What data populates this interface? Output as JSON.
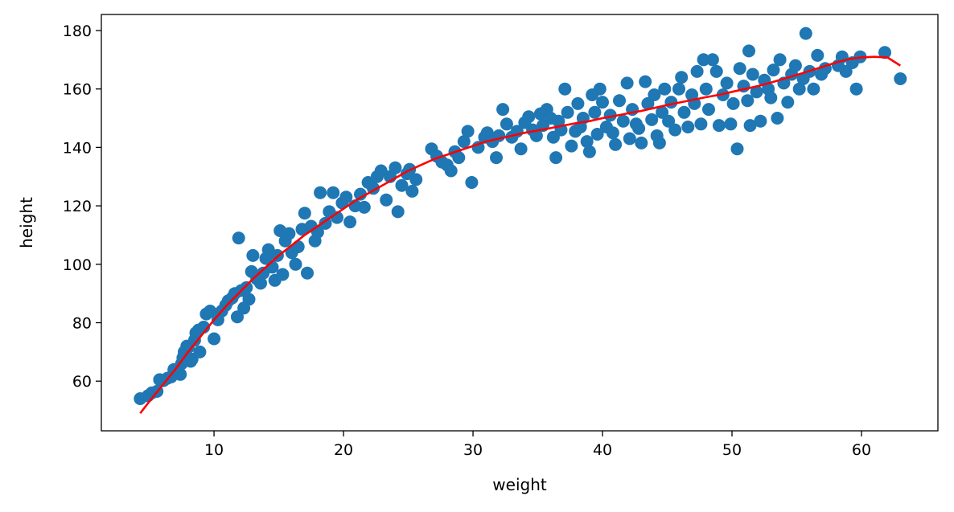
{
  "chart_data": {
    "type": "scatter",
    "title": "",
    "xlabel": "weight",
    "ylabel": "height",
    "xlim": [
      1.3,
      65.9
    ],
    "ylim": [
      43,
      185.5
    ],
    "xticks": [
      10,
      20,
      30,
      40,
      50,
      60
    ],
    "yticks": [
      60,
      80,
      100,
      120,
      140,
      160,
      180
    ],
    "grid": false,
    "legend": "none",
    "colors": {
      "points": "#1f77b4",
      "fit_line": "#ff0000",
      "axes": "#000000"
    },
    "series": [
      {
        "kind": "scatter",
        "points": [
          [
            4.3,
            54.0
          ],
          [
            4.9,
            55.0
          ],
          [
            5.2,
            56.0
          ],
          [
            5.6,
            56.5
          ],
          [
            5.8,
            60.5
          ],
          [
            6.1,
            60.2
          ],
          [
            6.4,
            61.0
          ],
          [
            6.7,
            61.5
          ],
          [
            6.9,
            64.0
          ],
          [
            7.2,
            63.0
          ],
          [
            7.4,
            62.3
          ],
          [
            7.5,
            66.0
          ],
          [
            7.6,
            68.0
          ],
          [
            7.7,
            70.0
          ],
          [
            7.9,
            72.0
          ],
          [
            8.0,
            71.5
          ],
          [
            8.2,
            66.8
          ],
          [
            8.3,
            67.5
          ],
          [
            8.5,
            74.0
          ],
          [
            8.6,
            76.5
          ],
          [
            8.8,
            77.5
          ],
          [
            8.9,
            70.0
          ],
          [
            9.2,
            78.5
          ],
          [
            9.4,
            83.0
          ],
          [
            9.7,
            84.0
          ],
          [
            10.0,
            74.5
          ],
          [
            10.3,
            81.0
          ],
          [
            10.6,
            84.0
          ],
          [
            10.9,
            86.0
          ],
          [
            11.1,
            87.5
          ],
          [
            11.4,
            88.5
          ],
          [
            11.6,
            90.0
          ],
          [
            11.8,
            82.0
          ],
          [
            11.9,
            109.0
          ],
          [
            12.1,
            91.0
          ],
          [
            12.3,
            85.0
          ],
          [
            12.5,
            92.0
          ],
          [
            12.7,
            88.0
          ],
          [
            12.9,
            97.5
          ],
          [
            13.0,
            103.0
          ],
          [
            13.3,
            95.0
          ],
          [
            13.6,
            93.5
          ],
          [
            13.8,
            97.0
          ],
          [
            14.0,
            102.0
          ],
          [
            14.2,
            105.0
          ],
          [
            14.5,
            99.0
          ],
          [
            14.7,
            94.5
          ],
          [
            14.9,
            103.0
          ],
          [
            15.1,
            111.5
          ],
          [
            15.3,
            96.5
          ],
          [
            15.5,
            108.0
          ],
          [
            15.8,
            110.5
          ],
          [
            16.0,
            104.0
          ],
          [
            16.3,
            100.0
          ],
          [
            16.5,
            106.0
          ],
          [
            16.8,
            112.0
          ],
          [
            17.0,
            117.5
          ],
          [
            17.2,
            97.0
          ],
          [
            17.5,
            113.0
          ],
          [
            17.8,
            108.0
          ],
          [
            18.0,
            111.0
          ],
          [
            18.2,
            124.5
          ],
          [
            18.6,
            114.0
          ],
          [
            18.9,
            118.0
          ],
          [
            19.2,
            124.5
          ],
          [
            19.5,
            116.0
          ],
          [
            19.9,
            121.0
          ],
          [
            20.2,
            123.0
          ],
          [
            20.5,
            114.5
          ],
          [
            20.9,
            120.0
          ],
          [
            21.3,
            124.0
          ],
          [
            21.6,
            119.5
          ],
          [
            21.9,
            128.0
          ],
          [
            22.3,
            126.0
          ],
          [
            22.6,
            130.0
          ],
          [
            22.9,
            132.0
          ],
          [
            23.3,
            122.0
          ],
          [
            23.6,
            130.0
          ],
          [
            24.0,
            133.0
          ],
          [
            24.2,
            118.0
          ],
          [
            24.5,
            127.0
          ],
          [
            24.9,
            131.0
          ],
          [
            25.1,
            132.5
          ],
          [
            25.3,
            125.0
          ],
          [
            25.6,
            129.0
          ],
          [
            26.8,
            139.5
          ],
          [
            27.2,
            137.0
          ],
          [
            27.6,
            135.0
          ],
          [
            28.0,
            134.0
          ],
          [
            28.3,
            132.0
          ],
          [
            28.6,
            138.5
          ],
          [
            28.9,
            136.5
          ],
          [
            29.3,
            142.0
          ],
          [
            29.6,
            145.5
          ],
          [
            29.9,
            128.0
          ],
          [
            30.4,
            140.0
          ],
          [
            30.9,
            143.5
          ],
          [
            31.1,
            145.0
          ],
          [
            31.5,
            142.0
          ],
          [
            31.8,
            136.5
          ],
          [
            32.0,
            144.0
          ],
          [
            32.3,
            153.0
          ],
          [
            32.6,
            148.0
          ],
          [
            33.0,
            143.5
          ],
          [
            33.4,
            145.5
          ],
          [
            33.7,
            139.5
          ],
          [
            34.0,
            148.5
          ],
          [
            34.3,
            150.5
          ],
          [
            34.6,
            146.0
          ],
          [
            34.9,
            144.0
          ],
          [
            35.2,
            151.5
          ],
          [
            35.4,
            147.5
          ],
          [
            35.7,
            153.0
          ],
          [
            36.0,
            150.0
          ],
          [
            36.2,
            143.5
          ],
          [
            36.4,
            136.5
          ],
          [
            36.6,
            149.0
          ],
          [
            36.8,
            146.0
          ],
          [
            37.1,
            160.0
          ],
          [
            37.3,
            152.0
          ],
          [
            37.6,
            140.5
          ],
          [
            37.9,
            145.5
          ],
          [
            38.1,
            155.0
          ],
          [
            38.3,
            147.0
          ],
          [
            38.5,
            150.0
          ],
          [
            38.8,
            142.0
          ],
          [
            39.0,
            138.5
          ],
          [
            39.2,
            158.0
          ],
          [
            39.4,
            152.0
          ],
          [
            39.6,
            144.5
          ],
          [
            39.8,
            160.0
          ],
          [
            40.0,
            155.5
          ],
          [
            40.3,
            147.0
          ],
          [
            40.6,
            151.0
          ],
          [
            40.8,
            145.0
          ],
          [
            41.0,
            141.0
          ],
          [
            41.3,
            156.0
          ],
          [
            41.6,
            149.0
          ],
          [
            41.9,
            162.0
          ],
          [
            42.1,
            143.0
          ],
          [
            42.3,
            153.0
          ],
          [
            42.6,
            148.0
          ],
          [
            42.8,
            146.5
          ],
          [
            43.0,
            141.5
          ],
          [
            43.3,
            162.5
          ],
          [
            43.5,
            155.0
          ],
          [
            43.8,
            149.5
          ],
          [
            44.0,
            158.0
          ],
          [
            44.2,
            144.0
          ],
          [
            44.4,
            141.5
          ],
          [
            44.6,
            152.0
          ],
          [
            44.8,
            160.0
          ],
          [
            45.1,
            149.0
          ],
          [
            45.3,
            155.5
          ],
          [
            45.6,
            146.0
          ],
          [
            45.9,
            160.0
          ],
          [
            46.1,
            164.0
          ],
          [
            46.3,
            152.0
          ],
          [
            46.6,
            147.0
          ],
          [
            46.9,
            158.0
          ],
          [
            47.1,
            155.0
          ],
          [
            47.3,
            166.0
          ],
          [
            47.6,
            148.0
          ],
          [
            47.8,
            170.0
          ],
          [
            48.0,
            160.0
          ],
          [
            48.2,
            153.0
          ],
          [
            48.5,
            170.0
          ],
          [
            48.8,
            166.0
          ],
          [
            49.0,
            147.5
          ],
          [
            49.3,
            158.0
          ],
          [
            49.6,
            162.0
          ],
          [
            49.9,
            148.0
          ],
          [
            50.1,
            155.0
          ],
          [
            50.4,
            139.5
          ],
          [
            50.6,
            167.0
          ],
          [
            50.9,
            161.0
          ],
          [
            51.2,
            156.0
          ],
          [
            51.3,
            173.0
          ],
          [
            51.4,
            147.5
          ],
          [
            51.6,
            165.0
          ],
          [
            51.9,
            159.0
          ],
          [
            52.2,
            149.0
          ],
          [
            52.5,
            163.0
          ],
          [
            52.8,
            160.0
          ],
          [
            53.0,
            157.0
          ],
          [
            53.2,
            166.5
          ],
          [
            53.5,
            150.0
          ],
          [
            53.7,
            170.0
          ],
          [
            54.0,
            162.0
          ],
          [
            54.3,
            155.5
          ],
          [
            54.6,
            165.0
          ],
          [
            54.9,
            168.0
          ],
          [
            55.2,
            160.0
          ],
          [
            55.5,
            163.5
          ],
          [
            55.7,
            179.0
          ],
          [
            56.0,
            166.0
          ],
          [
            56.3,
            160.0
          ],
          [
            56.6,
            171.5
          ],
          [
            56.9,
            165.0
          ],
          [
            57.2,
            167.0
          ],
          [
            58.2,
            168.0
          ],
          [
            58.5,
            171.0
          ],
          [
            58.8,
            166.0
          ],
          [
            59.3,
            169.0
          ],
          [
            59.6,
            160.0
          ],
          [
            59.9,
            171.0
          ],
          [
            61.8,
            172.5
          ],
          [
            63.0,
            163.5
          ]
        ]
      },
      {
        "kind": "line",
        "points": [
          [
            4.3,
            49.0
          ],
          [
            5.0,
            53.0
          ],
          [
            6.0,
            58.5
          ],
          [
            7.0,
            64.0
          ],
          [
            8.0,
            70.0
          ],
          [
            9.0,
            75.5
          ],
          [
            10.0,
            81.0
          ],
          [
            11.0,
            86.0
          ],
          [
            12.0,
            90.5
          ],
          [
            13.0,
            95.0
          ],
          [
            14.0,
            99.0
          ],
          [
            15.0,
            103.0
          ],
          [
            16.0,
            106.5
          ],
          [
            17.0,
            110.0
          ],
          [
            18.0,
            113.0
          ],
          [
            19.0,
            116.0
          ],
          [
            20.0,
            119.0
          ],
          [
            21.0,
            122.0
          ],
          [
            22.0,
            124.5
          ],
          [
            23.0,
            127.0
          ],
          [
            24.0,
            129.5
          ],
          [
            25.0,
            132.0
          ],
          [
            26.0,
            134.0
          ],
          [
            27.0,
            136.0
          ],
          [
            28.0,
            137.5
          ],
          [
            29.0,
            139.0
          ],
          [
            30.0,
            140.5
          ],
          [
            31.0,
            142.0
          ],
          [
            32.0,
            143.0
          ],
          [
            33.0,
            144.0
          ],
          [
            34.0,
            145.0
          ],
          [
            35.0,
            145.8
          ],
          [
            36.0,
            146.6
          ],
          [
            37.0,
            147.5
          ],
          [
            38.0,
            148.3
          ],
          [
            39.0,
            149.0
          ],
          [
            40.0,
            150.0
          ],
          [
            41.0,
            150.8
          ],
          [
            42.0,
            151.7
          ],
          [
            43.0,
            152.5
          ],
          [
            44.0,
            153.5
          ],
          [
            45.0,
            154.5
          ],
          [
            46.0,
            155.4
          ],
          [
            47.0,
            156.3
          ],
          [
            48.0,
            157.2
          ],
          [
            49.0,
            158.0
          ],
          [
            50.0,
            159.0
          ],
          [
            51.0,
            160.0
          ],
          [
            52.0,
            161.0
          ],
          [
            53.0,
            162.2
          ],
          [
            54.0,
            163.5
          ],
          [
            55.0,
            164.8
          ],
          [
            56.0,
            166.2
          ],
          [
            57.0,
            167.6
          ],
          [
            58.0,
            169.0
          ],
          [
            59.0,
            170.2
          ],
          [
            60.0,
            170.8
          ],
          [
            61.0,
            171.0
          ],
          [
            62.0,
            170.8
          ],
          [
            63.0,
            168.0
          ]
        ]
      }
    ]
  }
}
